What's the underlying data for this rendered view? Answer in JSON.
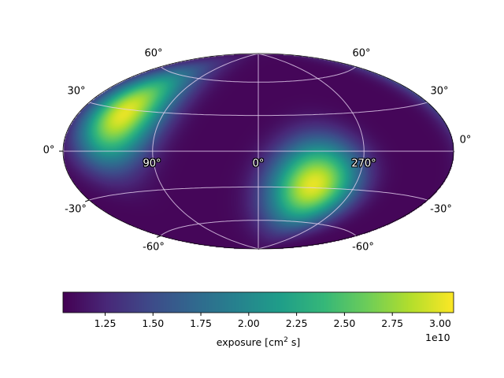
{
  "chart_data": {
    "type": "heatmap",
    "projection": "hammer",
    "colormap": "viridis",
    "title": "",
    "grid": true,
    "longitude_tick_labels": [
      "90°",
      "0°",
      "270°"
    ],
    "latitude_tick_labels_left": [
      "60°",
      "30°",
      "0°",
      "-30°",
      "-60°"
    ],
    "latitude_tick_labels_right": [
      "60°",
      "30°",
      "0°",
      "-30°",
      "-60°"
    ],
    "peaks": [
      {
        "lon": 130,
        "lat": 27,
        "value": 30000000000.0
      },
      {
        "lon": 305,
        "lat": -26,
        "value": 30000000000.0
      }
    ],
    "colorbar": {
      "label_main": "exposure [cm",
      "label_sup": "2",
      "label_end": " s]",
      "offset_text": "1e10",
      "range": [
        1.03,
        3.07
      ],
      "ticks": [
        "1.25",
        "1.50",
        "1.75",
        "2.00",
        "2.25",
        "2.50",
        "2.75",
        "3.00"
      ],
      "orientation": "horizontal",
      "placement": "bottom"
    }
  }
}
